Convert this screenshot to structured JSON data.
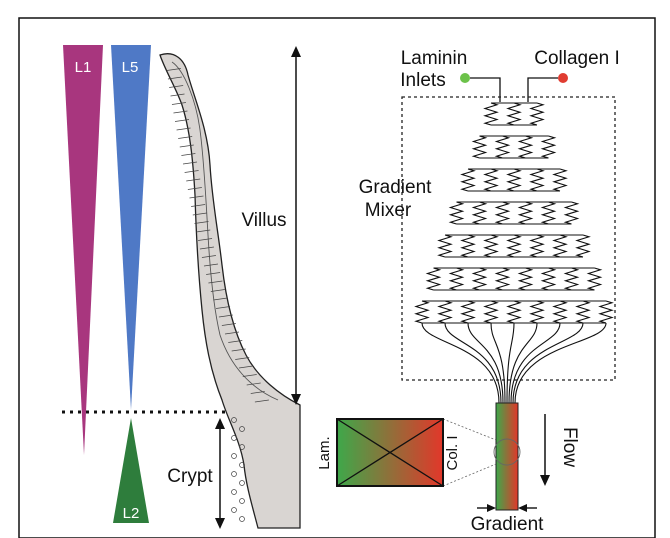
{
  "gradients": {
    "l1": {
      "label": "L1",
      "color": "#a8367e"
    },
    "l5": {
      "label": "L5",
      "color": "#4f79c6"
    },
    "l2": {
      "label": "L2",
      "color": "#2e7d3c"
    }
  },
  "tissue": {
    "villus_label": "Villus",
    "crypt_label": "Crypt",
    "fill_color": "#d9d5d2"
  },
  "chip": {
    "laminin_label_line1": "Laminin",
    "laminin_label_line2": "Inlets",
    "collagen_label": "Collagen I",
    "laminin_inlet_color": "#6cc24a",
    "collagen_inlet_color": "#e03c31",
    "mixer_label_line1": "Gradient",
    "mixer_label_line2": "Mixer",
    "mixer_stage_channels": [
      3,
      4,
      5,
      6,
      7,
      8,
      9
    ],
    "outlet_channels": 9
  },
  "cross_section": {
    "left_label": "Lam.",
    "right_label": "Col. I",
    "start_color": "#3ea84a",
    "end_color": "#e2372a"
  },
  "flow_label": "Flow",
  "gradient_label": "Gradient"
}
